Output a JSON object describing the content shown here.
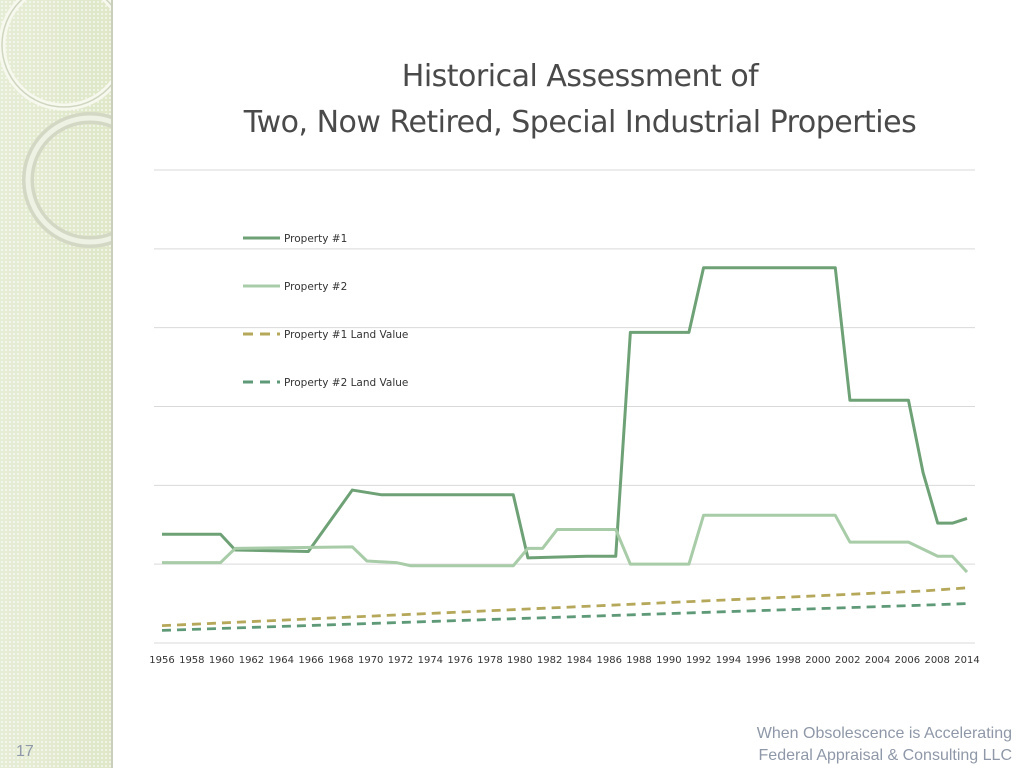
{
  "slide": {
    "title_line1": "Historical Assessment of",
    "title_line2": "Two, Now Retired, Special Industrial Properties",
    "page_number": "17",
    "footer_line1": "When Obsolescence is Accelerating",
    "footer_line2": "Federal Appraisal & Consulting LLC"
  },
  "colors": {
    "accent_green": "#6ea276",
    "light_green": "#a8cca8",
    "land_gold": "#b5a85a",
    "land_green": "#5f9a78",
    "panel": "#e3ebcf"
  },
  "chart_data": {
    "type": "line",
    "title": "",
    "xlabel": "",
    "ylabel": "",
    "ylim": [
      0,
      300
    ],
    "y_gridlines": [
      0,
      50,
      100,
      150,
      200,
      250,
      300
    ],
    "y_tick_labels_shown": false,
    "grid": true,
    "legend_position": "top-left",
    "categories": [
      "1956",
      "1958",
      "1960",
      "1962",
      "1964",
      "1966",
      "1968",
      "1970",
      "1972",
      "1974",
      "1976",
      "1978",
      "1980",
      "1982",
      "1984",
      "1986",
      "1988",
      "1990",
      "1992",
      "1994",
      "1996",
      "1998",
      "2000",
      "2002",
      "2004",
      "2006",
      "2008",
      "2014"
    ],
    "x_positions": [
      0,
      1,
      2,
      2.8,
      3,
      4,
      5,
      6,
      6.5,
      7,
      7.6,
      8,
      9,
      10,
      11,
      12,
      12.5,
      13,
      14,
      15,
      16,
      16.5,
      17,
      18,
      19,
      20,
      21,
      22,
      23,
      24,
      25,
      26,
      27,
      27.5
    ],
    "series": [
      {
        "name": "Property #1",
        "style": "solid",
        "color": "#6ea276",
        "points": [
          [
            0,
            69
          ],
          [
            4,
            69
          ],
          [
            5,
            59
          ],
          [
            10,
            58
          ],
          [
            13,
            97
          ],
          [
            15,
            94
          ],
          [
            24,
            94
          ],
          [
            25,
            54
          ],
          [
            29,
            55
          ],
          [
            31,
            55
          ],
          [
            32,
            197
          ],
          [
            36,
            197
          ],
          [
            37,
            238
          ],
          [
            46,
            238
          ],
          [
            47,
            154
          ],
          [
            51,
            154
          ],
          [
            52,
            108
          ],
          [
            53,
            76
          ],
          [
            54,
            76
          ],
          [
            55,
            79
          ]
        ]
      },
      {
        "name": "Property #2",
        "style": "solid",
        "color": "#a8cca8",
        "points": [
          [
            0,
            51
          ],
          [
            4,
            51
          ],
          [
            5,
            60
          ],
          [
            13,
            61
          ],
          [
            14,
            52
          ],
          [
            16,
            51
          ],
          [
            17,
            49
          ],
          [
            24,
            49
          ],
          [
            25,
            60
          ],
          [
            26,
            60
          ],
          [
            27,
            72
          ],
          [
            31,
            72
          ],
          [
            32,
            50
          ],
          [
            36,
            50
          ],
          [
            37,
            81
          ],
          [
            46,
            81
          ],
          [
            47,
            64
          ],
          [
            51,
            64
          ],
          [
            53,
            55
          ],
          [
            54,
            55
          ],
          [
            55,
            45
          ]
        ]
      },
      {
        "name": "Property #1 Land Value",
        "style": "dashed",
        "color": "#b5a85a",
        "points": [
          [
            0,
            11
          ],
          [
            52,
            33
          ],
          [
            55,
            35
          ]
        ]
      },
      {
        "name": "Property #2 Land Value",
        "style": "dashed",
        "color": "#5f9a78",
        "points": [
          [
            0,
            8
          ],
          [
            52,
            24
          ],
          [
            55,
            25
          ]
        ]
      }
    ]
  }
}
